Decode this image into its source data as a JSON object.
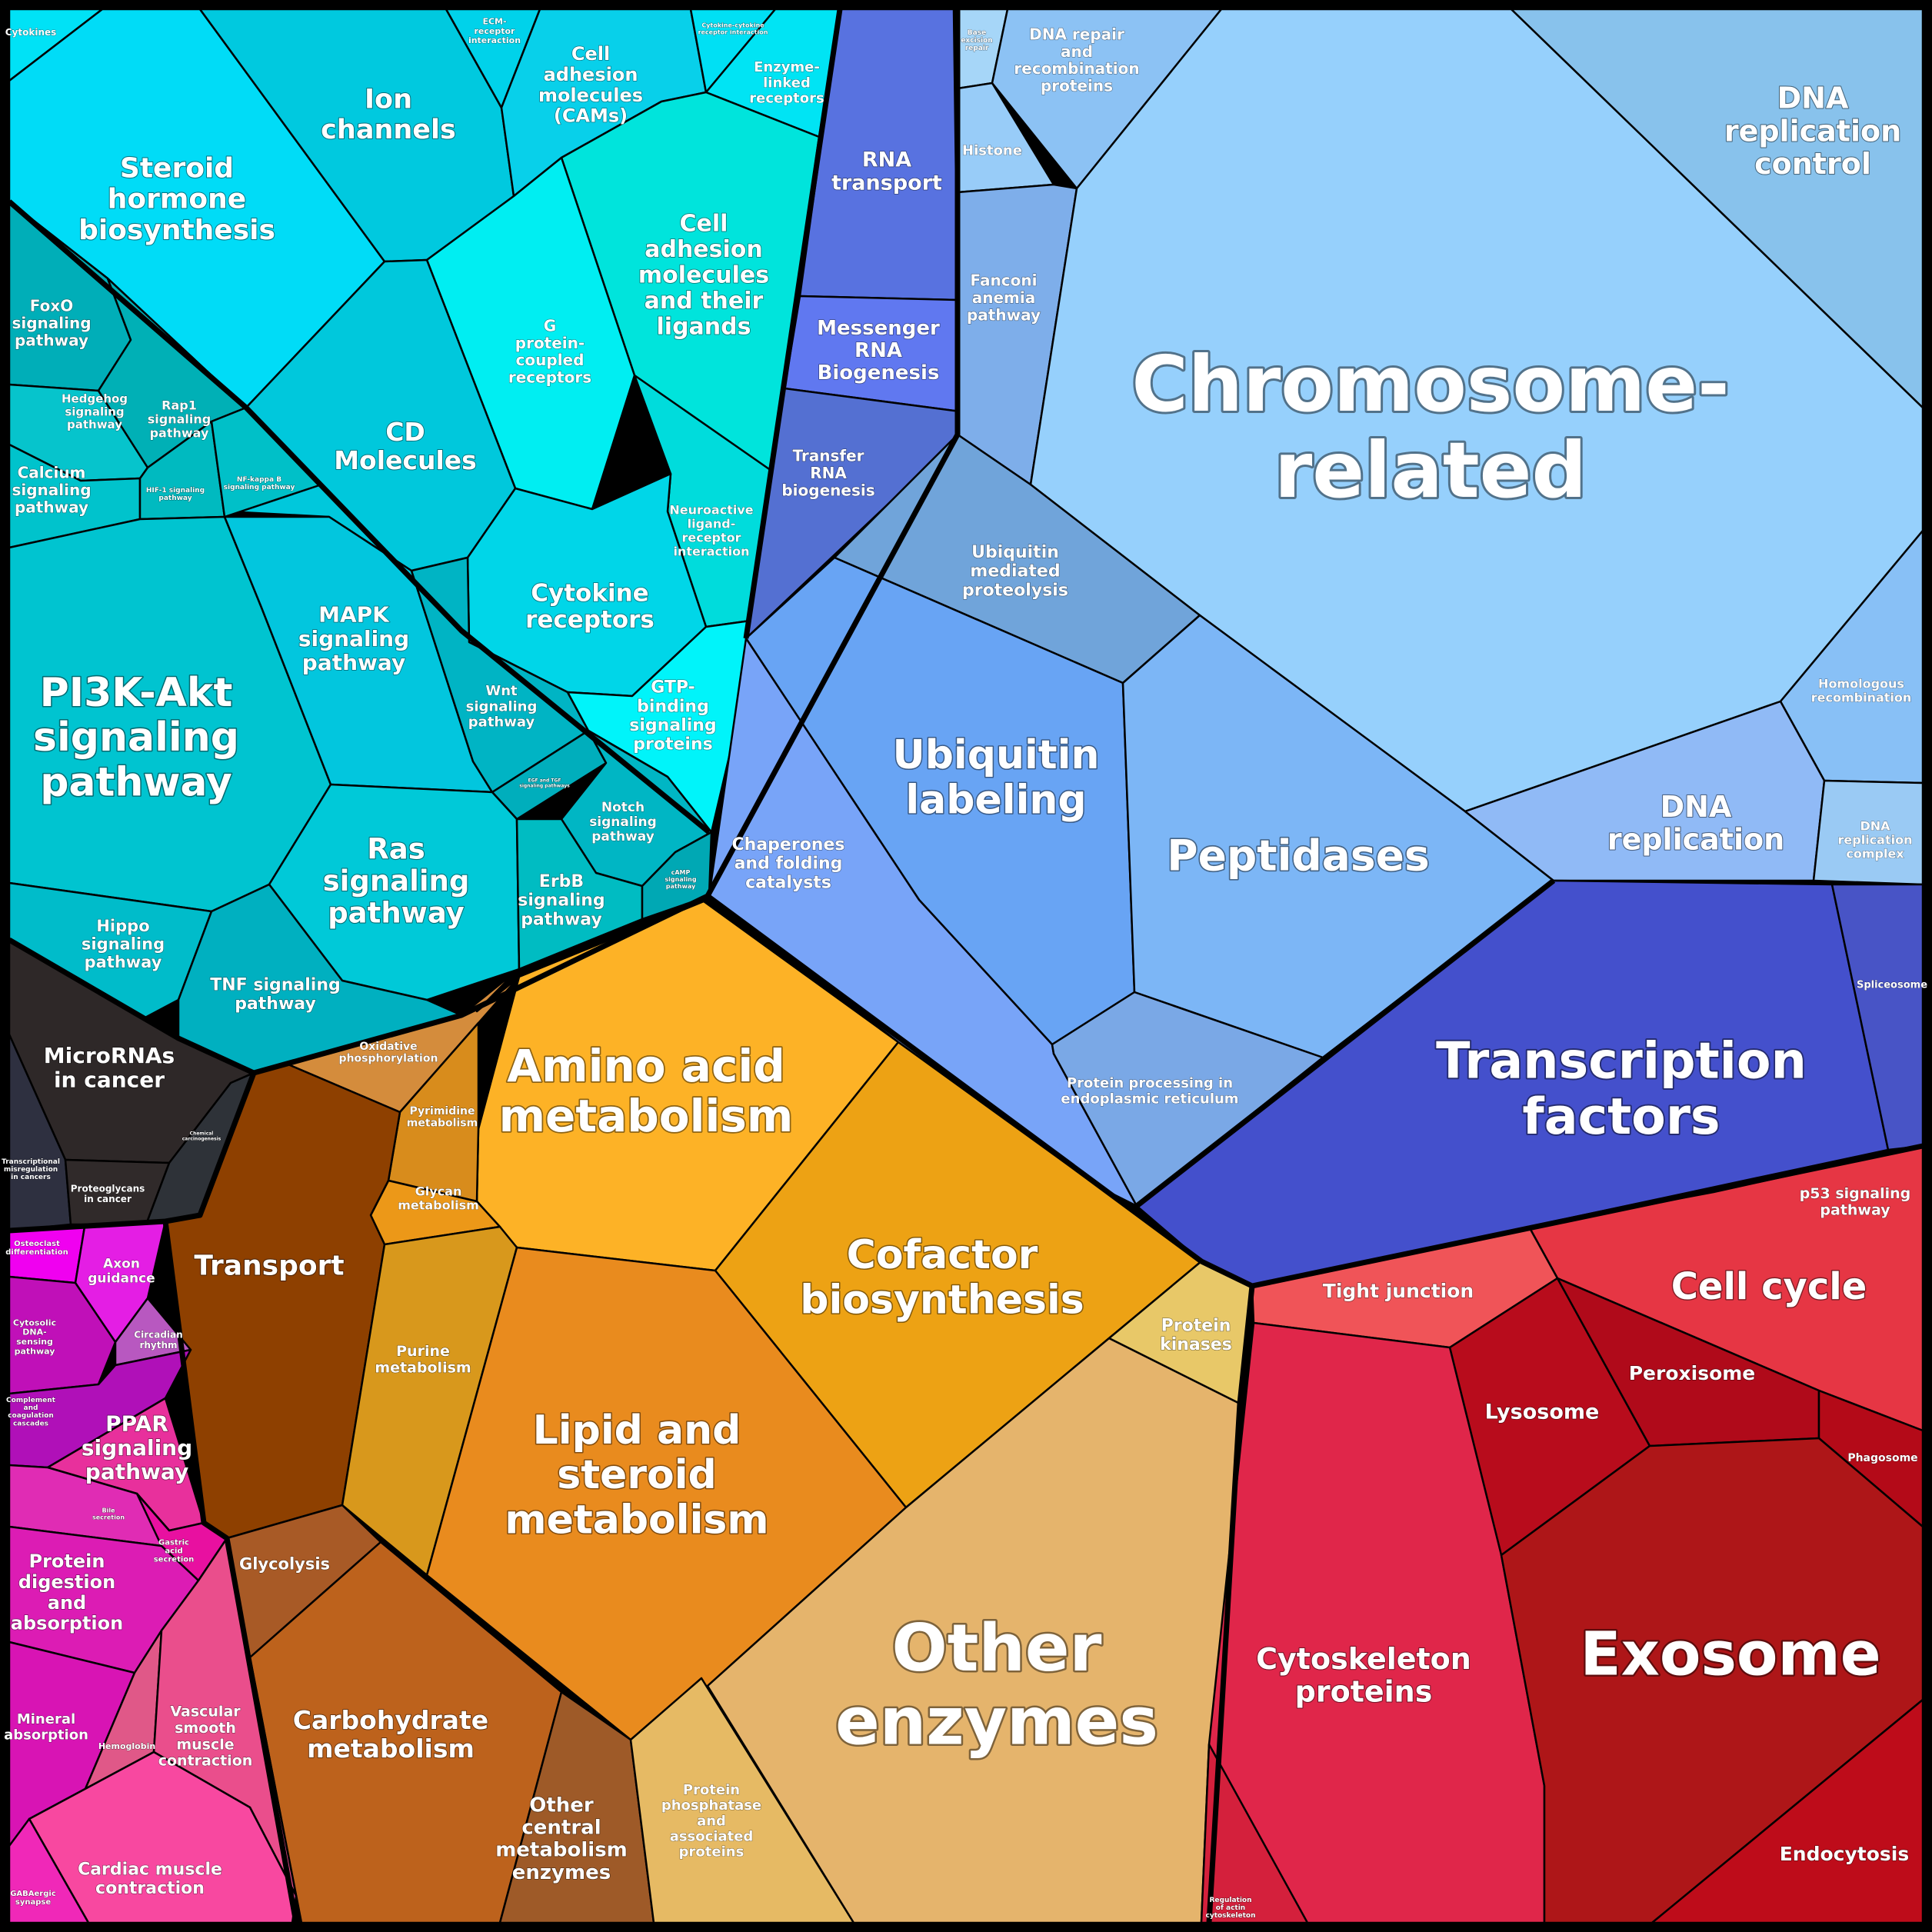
{
  "chart_data": {
    "type": "voronoi-treemap",
    "groups": [
      {
        "name": "signaling",
        "color": "#00d8f0",
        "cells": [
          {
            "id": "cytokines",
            "lines": [
              "Cytokines"
            ],
            "color": "#00e2f6"
          },
          {
            "id": "steroid-hormone-biosynthesis",
            "lines": [
              "Steroid",
              "hormone",
              "biosynthesis"
            ],
            "color": "#00dcf7"
          },
          {
            "id": "ion-channels",
            "lines": [
              "Ion",
              "channels"
            ],
            "color": "#00c9df"
          },
          {
            "id": "ecm-receptor-interaction",
            "lines": [
              "ECM-",
              "receptor",
              "interaction"
            ],
            "color": "#00d2ea"
          },
          {
            "id": "cell-adhesion-molecules-cams",
            "lines": [
              "Cell",
              "adhesion",
              "molecules",
              "(CAMs)"
            ],
            "color": "#08d0ea"
          },
          {
            "id": "cytokine-cytokine-receptor-interaction",
            "lines": [
              "Cytokine-cytokine",
              "receptor interaction"
            ],
            "color": "#00e0f4"
          },
          {
            "id": "enzyme-linked-receptors",
            "lines": [
              "Enzyme-",
              "linked",
              "receptors"
            ],
            "color": "#00e4f4"
          },
          {
            "id": "cell-adhesion-molecules-and-their-ligands",
            "lines": [
              "Cell",
              "adhesion",
              "molecules",
              "and their",
              "ligands"
            ],
            "color": "#00e4dc"
          },
          {
            "id": "g-protein-coupled-receptors",
            "lines": [
              "G",
              "protein-",
              "coupled",
              "receptors"
            ],
            "color": "#00eef2"
          },
          {
            "id": "cd-molecules",
            "lines": [
              "CD",
              "Molecules"
            ],
            "color": "#00c8dc"
          },
          {
            "id": "foxo-signaling-pathway",
            "lines": [
              "FoxO",
              "signaling",
              "pathway"
            ],
            "color": "#00aeb8"
          },
          {
            "id": "hedgehog-signaling-pathway",
            "lines": [
              "Hedgehog",
              "signaling",
              "pathway"
            ],
            "color": "#06c4cc"
          },
          {
            "id": "rap1-signaling-pathway",
            "lines": [
              "Rap1",
              "signaling",
              "pathway"
            ],
            "color": "#00b0b6"
          },
          {
            "id": "calcium-signaling-pathway",
            "lines": [
              "Calcium",
              "signaling",
              "pathway"
            ],
            "color": "#00c3cc"
          },
          {
            "id": "hif-1-signaling-pathway",
            "lines": [
              "HIF-1 signaling",
              "pathway"
            ],
            "color": "#00bac0"
          },
          {
            "id": "nf-kappa-b-signaling-pathway",
            "lines": [
              "NF-kappa B",
              "signaling pathway"
            ],
            "color": "#00c0c8"
          },
          {
            "id": "neuroactive-ligand-receptor-interaction",
            "lines": [
              "Neuroactive",
              "ligand-",
              "receptor",
              "interaction"
            ],
            "color": "#00dcdc"
          },
          {
            "id": "cytokine-receptors",
            "lines": [
              "Cytokine",
              "receptors"
            ],
            "color": "#00d6e8"
          },
          {
            "id": "pi3k-akt-signaling-pathway",
            "lines": [
              "PI3K-Akt",
              "signaling",
              "pathway"
            ],
            "color": "#00c4d0"
          },
          {
            "id": "mapk-signaling-pathway",
            "lines": [
              "MAPK",
              "signaling",
              "pathway"
            ],
            "color": "#02c6de"
          },
          {
            "id": "wnt-signaling-pathway",
            "lines": [
              "Wnt",
              "signaling",
              "pathway"
            ],
            "color": "#00b4c4"
          },
          {
            "id": "gtp-binding-signaling-proteins",
            "lines": [
              "GTP-",
              "binding",
              "signaling",
              "proteins"
            ],
            "color": "#00f4fa"
          },
          {
            "id": "egf-tgf-signaling-pathways",
            "lines": [
              "EGF and TGF",
              "signaling pathways"
            ],
            "color": "#00aebc"
          },
          {
            "id": "notch-signaling-pathway",
            "lines": [
              "Notch",
              "signaling",
              "pathway"
            ],
            "color": "#00b6c4"
          },
          {
            "id": "ras-signaling-pathway",
            "lines": [
              "Ras",
              "signaling",
              "pathway"
            ],
            "color": "#00c9d8"
          },
          {
            "id": "erbb-signaling-pathway",
            "lines": [
              "ErbB",
              "signaling",
              "pathway"
            ],
            "color": "#00bcc2"
          },
          {
            "id": "camp-signaling-pathway",
            "lines": [
              "cAMP",
              "signaling",
              "pathway"
            ],
            "color": "#00a8b4"
          },
          {
            "id": "hippo-signaling-pathway",
            "lines": [
              "Hippo",
              "signaling",
              "pathway"
            ],
            "color": "#00bcca"
          },
          {
            "id": "tnf-signaling-pathway",
            "lines": [
              "TNF signaling",
              "pathway"
            ],
            "color": "#00b0c0"
          }
        ]
      },
      {
        "name": "cancer",
        "color": "#2e2828",
        "cells": [
          {
            "id": "micrornas-in-cancer",
            "lines": [
              "MicroRNAs",
              "in cancer"
            ],
            "color": "#2e2828"
          },
          {
            "id": "transcriptional-misregulation-in-cancers",
            "lines": [
              "Transcriptional",
              "misregulation",
              "in cancers"
            ],
            "color": "#2e3040"
          },
          {
            "id": "proteoglycans-in-cancer",
            "lines": [
              "Proteoglycans",
              "in cancer"
            ],
            "color": "#302a2a"
          },
          {
            "id": "small-cancer-cell",
            "lines": [
              "Chemical",
              "carcinogenesis"
            ],
            "color": "#2e3238"
          }
        ]
      },
      {
        "name": "metabolism",
        "color": "#f0a020",
        "cells": [
          {
            "id": "oxidative-phosphorylation",
            "lines": [
              "Oxidative",
              "phosphorylation"
            ],
            "color": "#d48c3c"
          },
          {
            "id": "amino-acid-metabolism",
            "lines": [
              "Amino acid",
              "metabolism"
            ],
            "color": "#fdb226"
          },
          {
            "id": "pyrimidine-metabolism",
            "lines": [
              "Pyrimidine",
              "metabolism"
            ],
            "color": "#d88c1c"
          },
          {
            "id": "glycan-metabolism",
            "lines": [
              "Glycan",
              "metabolism"
            ],
            "color": "#ec9818"
          },
          {
            "id": "transport",
            "lines": [
              "Transport"
            ],
            "color": "#8e4000"
          },
          {
            "id": "cofactor-biosynthesis",
            "lines": [
              "Cofactor",
              "biosynthesis"
            ],
            "color": "#eda214"
          },
          {
            "id": "purine-metabolism",
            "lines": [
              "Purine",
              "metabolism"
            ],
            "color": "#d8981c"
          },
          {
            "id": "lipid-and-steroid-metabolism",
            "lines": [
              "Lipid and",
              "steroid",
              "metabolism"
            ],
            "color": "#e98b1e"
          },
          {
            "id": "protein-kinases",
            "lines": [
              "Protein",
              "kinases"
            ],
            "color": "#e8c868"
          },
          {
            "id": "glycolysis",
            "lines": [
              "Glycolysis"
            ],
            "color": "#a85a26"
          },
          {
            "id": "carbohydrate-metabolism",
            "lines": [
              "Carbohydrate",
              "metabolism"
            ],
            "color": "#bd621c"
          },
          {
            "id": "other-central-metabolism-enzymes",
            "lines": [
              "Other",
              "central",
              "metabolism",
              "enzymes"
            ],
            "color": "#9e5a28"
          },
          {
            "id": "protein-phosphatase-and-associated-proteins",
            "lines": [
              "Protein",
              "phosphatase",
              "and",
              "associated",
              "proteins"
            ],
            "color": "#e6ba64"
          },
          {
            "id": "other-enzymes",
            "lines": [
              "Other",
              "enzymes"
            ],
            "color": "#e5b46c"
          }
        ]
      },
      {
        "name": "organismal",
        "color": "#e02aa0",
        "cells": [
          {
            "id": "osteoclast-differentiation",
            "lines": [
              "Osteoclast",
              "differentiation"
            ],
            "color": "#f000f0"
          },
          {
            "id": "axon-guidance",
            "lines": [
              "Axon",
              "guidance"
            ],
            "color": "#e41ee4"
          },
          {
            "id": "cytosolic-dna-sensing-pathway",
            "lines": [
              "Cytosolic",
              "DNA-",
              "sensing",
              "pathway"
            ],
            "color": "#c010b8"
          },
          {
            "id": "circadian-rhythm",
            "lines": [
              "Circadian",
              "rhythm"
            ],
            "color": "#b858c0"
          },
          {
            "id": "complement-and-coagulation-cascades",
            "lines": [
              "Complement",
              "and",
              "coagulation",
              "cascades"
            ],
            "color": "#b010b8"
          },
          {
            "id": "ppar-signaling-pathway",
            "lines": [
              "PPAR",
              "signaling",
              "pathway"
            ],
            "color": "#e8309c"
          },
          {
            "id": "bile-secretion",
            "lines": [
              "Bile",
              "secretion"
            ],
            "color": "#e02cb4"
          },
          {
            "id": "gastric-acid-secretion",
            "lines": [
              "Gastric",
              "acid",
              "secretion"
            ],
            "color": "#e810a0"
          },
          {
            "id": "protein-digestion-and-absorption",
            "lines": [
              "Protein",
              "digestion",
              "and",
              "absorption"
            ],
            "color": "#dc1cb4"
          },
          {
            "id": "mineral-absorption",
            "lines": [
              "Mineral",
              "absorption"
            ],
            "color": "#d814b4"
          },
          {
            "id": "hemoglobin",
            "lines": [
              "Hemoglobin"
            ],
            "color": "#e05888"
          },
          {
            "id": "vascular-smooth-muscle-contraction",
            "lines": [
              "Vascular",
              "smooth",
              "muscle",
              "contraction"
            ],
            "color": "#ea4e8c"
          },
          {
            "id": "cardiac-muscle-contraction",
            "lines": [
              "Cardiac muscle",
              "contraction"
            ],
            "color": "#f848a0"
          },
          {
            "id": "gabaergic-synapse",
            "lines": [
              "GABAergic",
              "synapse"
            ],
            "color": "#f028b8"
          }
        ]
      },
      {
        "name": "cell-processes",
        "color": "#d82030",
        "cells": [
          {
            "id": "p53-signaling-pathway",
            "lines": [
              "p53 signaling",
              "pathway"
            ],
            "color": "#ee3848"
          },
          {
            "id": "cell-cycle",
            "lines": [
              "Cell cycle"
            ],
            "color": "#e63644"
          },
          {
            "id": "tight-junction",
            "lines": [
              "Tight junction"
            ],
            "color": "#f05458"
          },
          {
            "id": "lysosome",
            "lines": [
              "Lysosome"
            ],
            "color": "#b80c1c"
          },
          {
            "id": "peroxisome",
            "lines": [
              "Peroxisome"
            ],
            "color": "#b00a1a"
          },
          {
            "id": "phagosome",
            "lines": [
              "Phagosome"
            ],
            "color": "#b40a18"
          },
          {
            "id": "cytoskeleton-proteins",
            "lines": [
              "Cytoskeleton",
              "proteins"
            ],
            "color": "#e0264a"
          },
          {
            "id": "exosome",
            "lines": [
              "Exosome"
            ],
            "color": "#ae1618"
          },
          {
            "id": "endocytosis",
            "lines": [
              "Endocytosis"
            ],
            "color": "#be0c1a"
          },
          {
            "id": "regulation-of-actin-cytoskeleton",
            "lines": [
              "Regulation",
              "of actin",
              "cytoskeleton"
            ],
            "color": "#d4203c"
          }
        ]
      },
      {
        "name": "genetic-information",
        "color": "#90c8f8",
        "cells": [
          {
            "id": "rna-transport",
            "lines": [
              "RNA",
              "transport"
            ],
            "color": "#5872e0"
          },
          {
            "id": "messenger-rna-biogenesis",
            "lines": [
              "Messenger",
              "RNA",
              "Biogenesis"
            ],
            "color": "#6078f0"
          },
          {
            "id": "transfer-rna-biogenesis",
            "lines": [
              "Transfer",
              "RNA",
              "biogenesis"
            ],
            "color": "#5470d2"
          },
          {
            "id": "base-excision-repair",
            "lines": [
              "Base",
              "excision",
              "repair"
            ],
            "color": "#a6d6f8"
          },
          {
            "id": "dna-repair-and-recombination-proteins",
            "lines": [
              "DNA repair",
              "and",
              "recombination",
              "proteins"
            ],
            "color": "#8cc2f4"
          },
          {
            "id": "histone",
            "lines": [
              "Histone"
            ],
            "color": "#98ccf8"
          },
          {
            "id": "fanconi-anemia-pathway",
            "lines": [
              "Fanconi",
              "anemia",
              "pathway"
            ],
            "color": "#7eaeea"
          },
          {
            "id": "chromosome-related",
            "lines": [
              "Chromosome-",
              "related"
            ],
            "color": "#96d0fc"
          },
          {
            "id": "dna-replication-control",
            "lines": [
              "DNA",
              "replication",
              "control"
            ],
            "color": "#88c2ec"
          },
          {
            "id": "ubiquitin-mediated-proteolysis",
            "lines": [
              "Ubiquitin",
              "mediated",
              "proteolysis"
            ],
            "color": "#70a4da"
          },
          {
            "id": "homologous-recombination",
            "lines": [
              "Homologous",
              "recombination"
            ],
            "color": "#88c0f6"
          },
          {
            "id": "ubiquitin-labeling",
            "lines": [
              "Ubiquitin",
              "labeling"
            ],
            "color": "#68a4f4"
          },
          {
            "id": "chaperones-and-folding-catalysts",
            "lines": [
              "Chaperones",
              "and folding",
              "catalysts"
            ],
            "color": "#78a4f8"
          },
          {
            "id": "peptidases",
            "lines": [
              "Peptidases"
            ],
            "color": "#7cb6f6"
          },
          {
            "id": "dna-replication",
            "lines": [
              "DNA",
              "replication"
            ],
            "color": "#90baf6"
          },
          {
            "id": "dna-replication-complex",
            "lines": [
              "DNA",
              "replication",
              "complex"
            ],
            "color": "#9acaf4"
          },
          {
            "id": "protein-processing-in-endoplasmic-reticulum",
            "lines": [
              "Protein processing in",
              "endoplasmic reticulum"
            ],
            "color": "#7aa8e6"
          },
          {
            "id": "transcription-factors",
            "lines": [
              "Transcription",
              "factors"
            ],
            "color": "#4450cc"
          },
          {
            "id": "spliceosome",
            "lines": [
              "Spliceosome"
            ],
            "color": "#4854c6"
          }
        ]
      }
    ]
  }
}
